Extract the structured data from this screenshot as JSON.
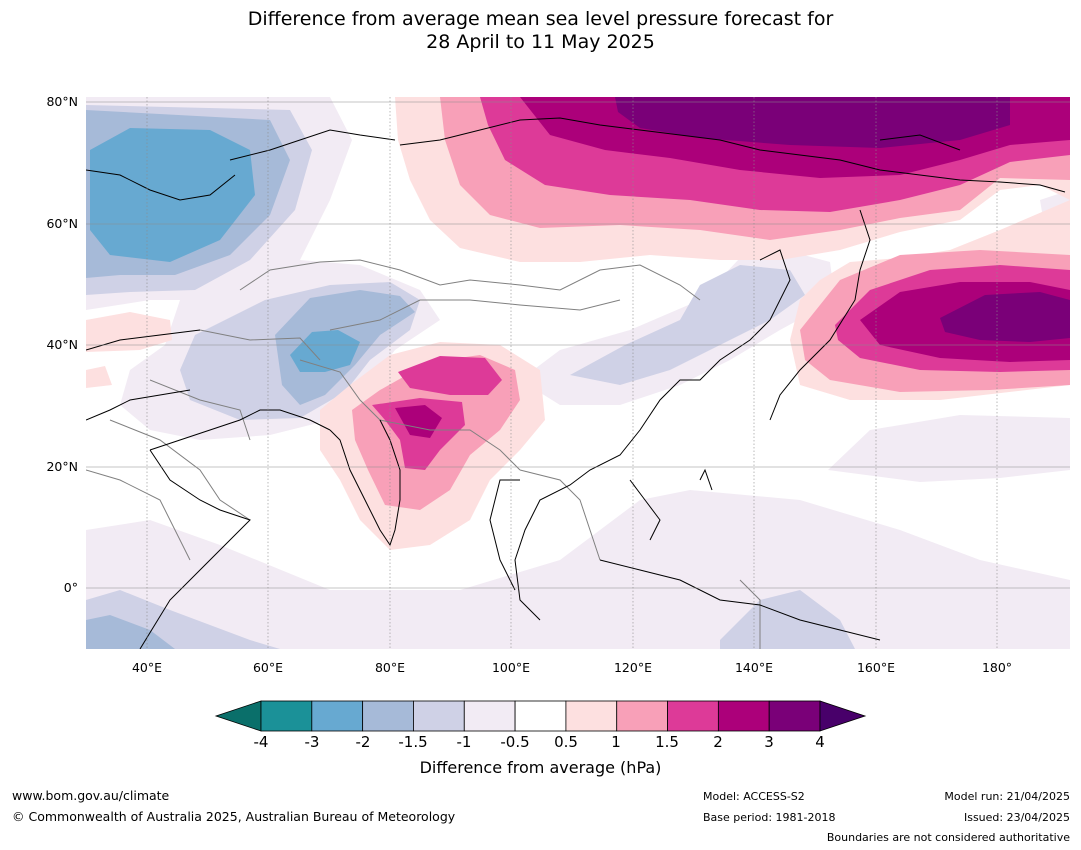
{
  "title_line1": "Difference from average mean sea level pressure forecast for",
  "title_line2": "28 April to 11 May 2025",
  "lat_labels": [
    "80°N",
    "60°N",
    "40°N",
    "20°N",
    "0°"
  ],
  "lon_labels": [
    "40°E",
    "60°E",
    "80°E",
    "100°E",
    "120°E",
    "140°E",
    "160°E",
    "180°"
  ],
  "colorbar": {
    "label": "Difference from average (hPa)",
    "ticks": [
      "-4",
      "-3",
      "-2",
      "-1.5",
      "-1",
      "-0.5",
      "0.5",
      "1",
      "1.5",
      "2",
      "3",
      "4"
    ],
    "colors": {
      "below_min": "#0a6f6a",
      "bins": [
        "#1b9198",
        "#67a9d1",
        "#a6bad8",
        "#cfd1e6",
        "#f2ebf4",
        "#ffffff",
        "#fde0e0",
        "#f8a0b8",
        "#dd3a98",
        "#ac007a",
        "#7a0078"
      ],
      "above_max": "#48006a"
    }
  },
  "footer": {
    "website": "www.bom.gov.au/climate",
    "copyright": "© Commonwealth of Australia 2025, Australian Bureau of Meteorology",
    "model": "Model: ACCESS-S2",
    "base_period": "Base period: 1981-2018",
    "model_run": "Model run: 21/04/2025",
    "issued": "Issued: 23/04/2025",
    "boundaries_note": "Boundaries are not considered authoritative"
  }
}
